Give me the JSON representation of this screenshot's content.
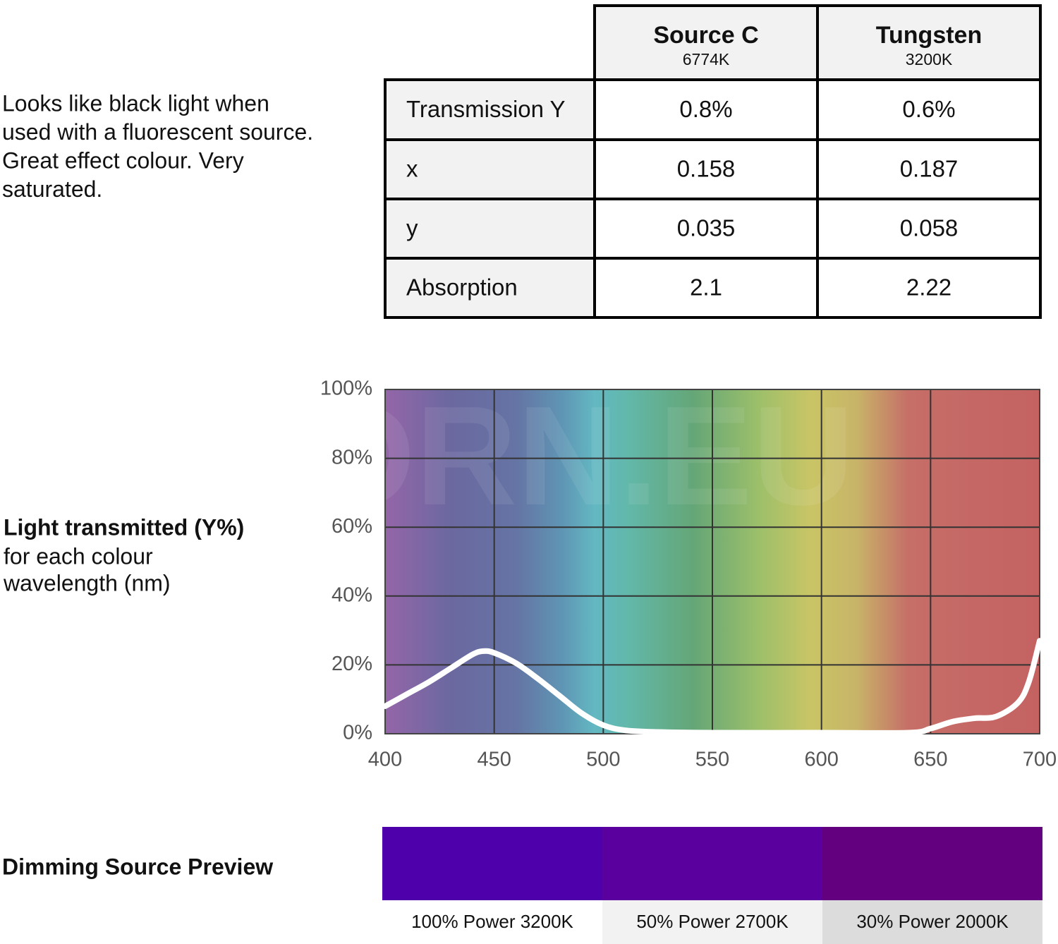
{
  "description": [
    "Looks like black light when",
    "used with a fluorescent source.",
    "Great effect colour. Very",
    "saturated."
  ],
  "table": {
    "columns": [
      {
        "name": "Source C",
        "temp": "6774K"
      },
      {
        "name": "Tungsten",
        "temp": "3200K"
      }
    ],
    "rows": [
      [
        "Transmission Y",
        "0.8%",
        "0.6%"
      ],
      [
        "x",
        "0.158",
        "0.187"
      ],
      [
        "y",
        "0.035",
        "0.058"
      ],
      [
        "Absorption",
        "2.1",
        "2.22"
      ]
    ]
  },
  "chart_data": {
    "type": "line",
    "axis_label": {
      "title": "Light transmitted (Y%)",
      "lines": [
        "for each colour",
        "wavelength (nm)"
      ]
    },
    "watermark": "KORN.EU",
    "x": [
      400,
      410,
      420,
      430,
      440,
      445,
      450,
      460,
      470,
      480,
      490,
      500,
      510,
      525,
      550,
      600,
      640,
      650,
      660,
      670,
      680,
      690,
      695,
      700
    ],
    "values": [
      8,
      11.5,
      15,
      19,
      23,
      24,
      23.5,
      20.5,
      16,
      11,
      6,
      2.5,
      1,
      0.5,
      0.3,
      0.3,
      0.3,
      1.5,
      3.5,
      4.5,
      5,
      9,
      15,
      27
    ],
    "color": "#ffffff",
    "xlim": [
      400,
      700
    ],
    "xticks": [
      400,
      450,
      500,
      550,
      600,
      650,
      700
    ],
    "ylim": [
      0,
      100
    ],
    "yticks": [
      {
        "value": 0,
        "label": "0%"
      },
      {
        "value": 20,
        "label": "20%"
      },
      {
        "value": 40,
        "label": "40%"
      },
      {
        "value": 60,
        "label": "60%"
      },
      {
        "value": 80,
        "label": "80%"
      },
      {
        "value": 100,
        "label": "100%"
      }
    ],
    "grid": true
  },
  "preview": {
    "title": "Dimming Source Preview",
    "swatches": [
      {
        "label": "100% Power 3200K",
        "color": "#4e00aa",
        "label_bg": "#ffffff"
      },
      {
        "label": "50% Power 2700K",
        "color": "#5a009e",
        "label_bg": "#f2f2f2"
      },
      {
        "label": "30% Power 2000K",
        "color": "#62007f",
        "label_bg": "#dcdcdc"
      }
    ]
  }
}
